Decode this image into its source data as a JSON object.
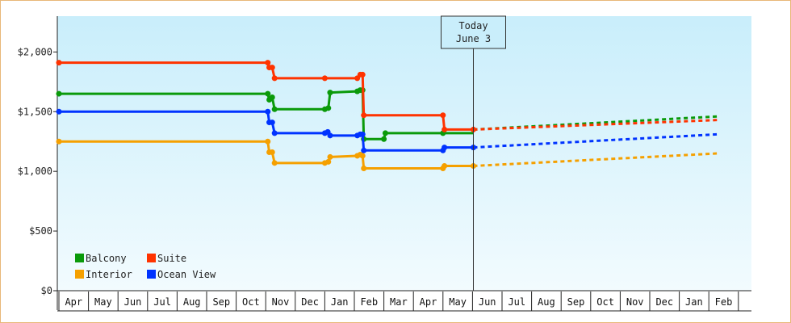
{
  "chart_data": {
    "type": "line",
    "title": "",
    "xlabel": "",
    "ylabel": "",
    "ylim": [
      0,
      2300
    ],
    "yticks": [
      {
        "value": 0,
        "label": "$0"
      },
      {
        "value": 500,
        "label": "$500"
      },
      {
        "value": 1000,
        "label": "$1,000"
      },
      {
        "value": 1500,
        "label": "$1,500"
      },
      {
        "value": 2000,
        "label": "$2,000"
      }
    ],
    "months": [
      "Apr",
      "May",
      "Jun",
      "Jul",
      "Aug",
      "Sep",
      "Oct",
      "Nov",
      "Dec",
      "Jan",
      "Feb",
      "Mar",
      "Apr",
      "May",
      "Jun",
      "Jul",
      "Aug",
      "Sep",
      "Oct",
      "Nov",
      "Dec",
      "Jan",
      "Feb"
    ],
    "today": {
      "line1": "Today",
      "line2": "June 3",
      "x": 14.03
    },
    "legend": {
      "placement": "bottom-left"
    },
    "series": [
      {
        "name": "Balcony",
        "color": "#0a9a0a",
        "actual": [
          [
            0.0,
            1650
          ],
          [
            7.07,
            1650
          ],
          [
            7.12,
            1600
          ],
          [
            7.22,
            1620
          ],
          [
            7.3,
            1520
          ],
          [
            9.0,
            1520
          ],
          [
            9.12,
            1530
          ],
          [
            9.18,
            1660
          ],
          [
            10.1,
            1670
          ],
          [
            10.2,
            1680
          ],
          [
            10.28,
            1680
          ],
          [
            10.32,
            1270
          ],
          [
            11.0,
            1270
          ],
          [
            11.05,
            1320
          ],
          [
            13.0,
            1320
          ],
          [
            14.03,
            1320
          ]
        ],
        "markers": [
          [
            0.0,
            1650
          ],
          [
            7.07,
            1650
          ],
          [
            7.12,
            1600
          ],
          [
            7.22,
            1620
          ],
          [
            7.3,
            1520
          ],
          [
            9.0,
            1520
          ],
          [
            9.12,
            1530
          ],
          [
            9.18,
            1660
          ],
          [
            10.1,
            1670
          ],
          [
            10.2,
            1680
          ],
          [
            10.28,
            1680
          ],
          [
            10.32,
            1270
          ],
          [
            11.0,
            1270
          ],
          [
            11.05,
            1320
          ],
          [
            13.0,
            1320
          ]
        ],
        "forecast": [
          [
            14.03,
            1350
          ],
          [
            22.3,
            1460
          ]
        ]
      },
      {
        "name": "Suite",
        "color": "#ff3300",
        "actual": [
          [
            0.0,
            1910
          ],
          [
            7.07,
            1910
          ],
          [
            7.12,
            1870
          ],
          [
            7.22,
            1870
          ],
          [
            7.3,
            1780
          ],
          [
            9.0,
            1780
          ],
          [
            10.1,
            1780
          ],
          [
            10.2,
            1810
          ],
          [
            10.28,
            1810
          ],
          [
            10.32,
            1470
          ],
          [
            13.0,
            1470
          ],
          [
            13.05,
            1350
          ],
          [
            14.03,
            1350
          ]
        ],
        "markers": [
          [
            0.0,
            1910
          ],
          [
            7.07,
            1910
          ],
          [
            7.12,
            1870
          ],
          [
            7.22,
            1870
          ],
          [
            7.3,
            1780
          ],
          [
            9.0,
            1780
          ],
          [
            10.1,
            1780
          ],
          [
            10.2,
            1810
          ],
          [
            10.28,
            1810
          ],
          [
            10.32,
            1470
          ],
          [
            13.0,
            1470
          ],
          [
            13.05,
            1350
          ],
          [
            14.03,
            1350
          ]
        ],
        "forecast": [
          [
            14.03,
            1350
          ],
          [
            22.3,
            1430
          ]
        ]
      },
      {
        "name": "Interior",
        "color": "#f5a000",
        "actual": [
          [
            0.0,
            1250
          ],
          [
            7.07,
            1250
          ],
          [
            7.12,
            1160
          ],
          [
            7.22,
            1160
          ],
          [
            7.3,
            1070
          ],
          [
            9.0,
            1070
          ],
          [
            9.12,
            1080
          ],
          [
            9.18,
            1120
          ],
          [
            10.1,
            1130
          ],
          [
            10.2,
            1140
          ],
          [
            10.28,
            1130
          ],
          [
            10.32,
            1025
          ],
          [
            13.0,
            1025
          ],
          [
            13.05,
            1045
          ],
          [
            14.03,
            1045
          ]
        ],
        "markers": [
          [
            0.0,
            1250
          ],
          [
            7.07,
            1250
          ],
          [
            7.12,
            1160
          ],
          [
            7.22,
            1160
          ],
          [
            7.3,
            1070
          ],
          [
            9.0,
            1070
          ],
          [
            9.12,
            1080
          ],
          [
            9.18,
            1120
          ],
          [
            10.1,
            1130
          ],
          [
            10.2,
            1140
          ],
          [
            10.28,
            1130
          ],
          [
            10.32,
            1025
          ],
          [
            13.0,
            1025
          ],
          [
            13.05,
            1045
          ],
          [
            14.03,
            1045
          ]
        ],
        "forecast": [
          [
            14.03,
            1045
          ],
          [
            22.3,
            1150
          ]
        ]
      },
      {
        "name": "Ocean View",
        "color": "#0033ff",
        "actual": [
          [
            0.0,
            1500
          ],
          [
            7.07,
            1500
          ],
          [
            7.12,
            1410
          ],
          [
            7.22,
            1410
          ],
          [
            7.3,
            1320
          ],
          [
            9.0,
            1320
          ],
          [
            9.1,
            1330
          ],
          [
            9.18,
            1300
          ],
          [
            10.1,
            1300
          ],
          [
            10.2,
            1310
          ],
          [
            10.28,
            1310
          ],
          [
            10.32,
            1175
          ],
          [
            13.0,
            1175
          ],
          [
            13.05,
            1200
          ],
          [
            14.03,
            1200
          ]
        ],
        "markers": [
          [
            0.0,
            1500
          ],
          [
            7.07,
            1500
          ],
          [
            7.12,
            1410
          ],
          [
            7.22,
            1410
          ],
          [
            7.3,
            1320
          ],
          [
            9.0,
            1320
          ],
          [
            9.1,
            1330
          ],
          [
            9.18,
            1300
          ],
          [
            10.1,
            1300
          ],
          [
            10.2,
            1310
          ],
          [
            10.28,
            1310
          ],
          [
            10.32,
            1175
          ],
          [
            13.0,
            1175
          ],
          [
            13.05,
            1200
          ],
          [
            14.03,
            1200
          ]
        ],
        "forecast": [
          [
            14.03,
            1200
          ],
          [
            22.3,
            1310
          ]
        ]
      }
    ],
    "legend_order": [
      "Balcony",
      "Suite",
      "Interior",
      "Ocean View"
    ]
  }
}
